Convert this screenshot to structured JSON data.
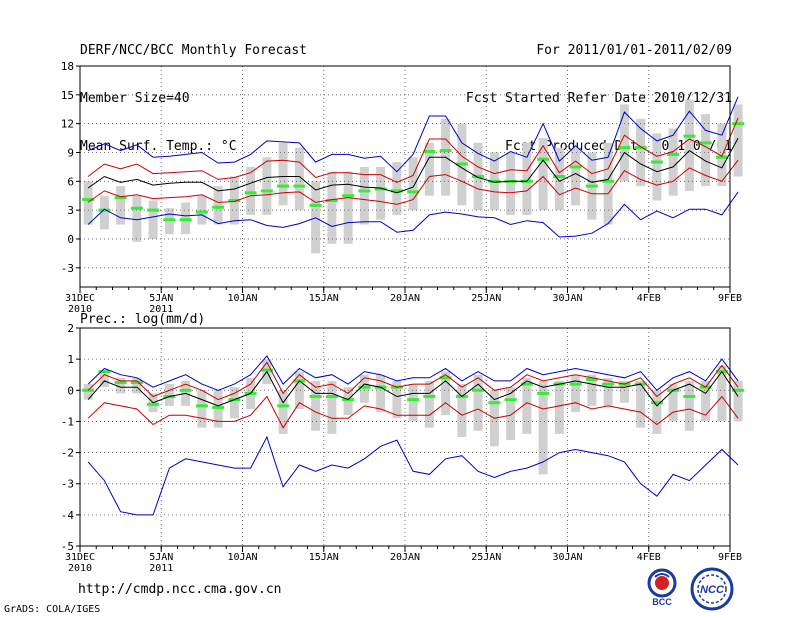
{
  "header": {
    "title": "DERF/NCC/BCC Monthly Forecast",
    "member_size": "Member Size=40",
    "variable": "Mean Surf. Temp.: °C",
    "period": "For 2011/01/01-2011/02/09",
    "started": "Fcst Started Refer Date 2010/12/31",
    "produced": "Fcst Produced Date 2011/01/01"
  },
  "footer": {
    "url": "http://cmdp.ncc.cma.gov.cn",
    "credit": "GrADS: COLA/IGES",
    "logo_left_text": "BCC",
    "logo_right_text": "NCC"
  },
  "colors": {
    "envelope": "#0000cc",
    "spread": "#cc0000",
    "mean": "#000000",
    "box": "#d0d0d0",
    "median": "#33ee33"
  },
  "chart_data": [
    {
      "type": "box-line",
      "title": "Mean Surf. Temp.: °C",
      "ylabel": "Mean Surf. Temp.: °C",
      "ylim": [
        -5,
        18
      ],
      "yticks": [
        -3,
        0,
        3,
        6,
        9,
        12,
        15,
        18
      ],
      "x_start_day": 0,
      "x_end_day": 40,
      "xticks": [
        {
          "day": 0,
          "label": "31DEC",
          "sub": "2010"
        },
        {
          "day": 5,
          "label": "5JAN",
          "sub": "2011"
        },
        {
          "day": 10,
          "label": "10JAN",
          "sub": ""
        },
        {
          "day": 15,
          "label": "15JAN",
          "sub": ""
        },
        {
          "day": 20,
          "label": "20JAN",
          "sub": ""
        },
        {
          "day": 25,
          "label": "25JAN",
          "sub": ""
        },
        {
          "day": 30,
          "label": "30JAN",
          "sub": ""
        },
        {
          "day": 35,
          "label": "4FEB",
          "sub": ""
        },
        {
          "day": 40,
          "label": "9FEB",
          "sub": ""
        }
      ],
      "series": [
        {
          "name": "max",
          "values": [
            9.2,
            9.9,
            9.2,
            9.8,
            8.5,
            8.6,
            8.8,
            9.0,
            7.9,
            8.0,
            8.8,
            10.2,
            10.1,
            10.0,
            8.0,
            8.8,
            8.8,
            8.4,
            8.6,
            7.0,
            8.8,
            12.8,
            12.8,
            10.0,
            8.9,
            8.1,
            9.1,
            8.5,
            12.0,
            8.1,
            9.7,
            8.2,
            8.5,
            13.2,
            11.5,
            10.2,
            10.8,
            13.3,
            11.3,
            10.8,
            14.8
          ]
        },
        {
          "name": "upper",
          "values": [
            6.5,
            7.8,
            7.3,
            7.8,
            6.8,
            6.9,
            7.0,
            7.1,
            6.2,
            6.4,
            6.9,
            8.1,
            8.2,
            8.0,
            6.4,
            6.9,
            6.9,
            6.7,
            6.7,
            5.9,
            6.6,
            10.4,
            10.4,
            8.6,
            7.5,
            6.8,
            7.2,
            7.1,
            9.7,
            6.9,
            8.1,
            6.8,
            7.3,
            10.8,
            9.6,
            8.6,
            9.1,
            10.4,
            9.6,
            8.6,
            12.6
          ]
        },
        {
          "name": "mean",
          "values": [
            5.3,
            6.5,
            5.9,
            6.2,
            5.6,
            5.8,
            5.9,
            5.9,
            5.0,
            5.2,
            5.8,
            6.4,
            6.5,
            6.5,
            5.1,
            5.6,
            5.7,
            5.4,
            5.3,
            4.8,
            5.4,
            8.5,
            8.5,
            7.4,
            6.4,
            5.9,
            6.0,
            6.0,
            8.2,
            6.0,
            6.8,
            5.9,
            6.2,
            9.0,
            7.8,
            7.0,
            7.5,
            9.2,
            8.1,
            7.4,
            10.5
          ]
        },
        {
          "name": "lower",
          "values": [
            3.8,
            5.0,
            4.4,
            4.6,
            4.2,
            4.3,
            4.4,
            4.6,
            3.8,
            3.9,
            4.5,
            4.6,
            4.8,
            4.9,
            3.8,
            4.1,
            4.3,
            4.1,
            3.9,
            3.6,
            4.1,
            6.5,
            6.7,
            6.0,
            5.2,
            4.9,
            4.8,
            5.0,
            6.5,
            4.6,
            5.3,
            4.7,
            4.7,
            7.1,
            6.2,
            5.6,
            6.0,
            7.4,
            6.6,
            6.0,
            8.2
          ]
        },
        {
          "name": "min",
          "values": [
            1.5,
            3.1,
            2.2,
            2.0,
            2.3,
            2.6,
            2.4,
            2.5,
            1.6,
            1.9,
            2.0,
            1.4,
            1.2,
            1.6,
            2.2,
            1.3,
            1.7,
            1.8,
            1.8,
            0.7,
            0.9,
            2.5,
            2.8,
            2.6,
            2.3,
            2.2,
            1.5,
            1.9,
            1.7,
            0.2,
            0.3,
            0.6,
            1.6,
            3.6,
            2.0,
            2.9,
            2.2,
            3.1,
            3.1,
            2.5,
            4.9
          ]
        }
      ],
      "boxes": [
        {
          "low": 1.5,
          "high": 6.0,
          "median": 4.1
        },
        {
          "low": 1.0,
          "high": 4.5,
          "median": 3.0
        },
        {
          "low": 1.5,
          "high": 5.5,
          "median": 4.3
        },
        {
          "low": -0.3,
          "high": 4.5,
          "median": 3.2
        },
        {
          "low": 0.0,
          "high": 4.0,
          "median": 3.0
        },
        {
          "low": 0.5,
          "high": 3.2,
          "median": 2.0
        },
        {
          "low": 0.5,
          "high": 3.8,
          "median": 2.0
        },
        {
          "low": 1.5,
          "high": 4.5,
          "median": 2.8
        },
        {
          "low": 1.5,
          "high": 5.5,
          "median": 3.3
        },
        {
          "low": 1.5,
          "high": 6.5,
          "median": 4.0
        },
        {
          "low": 2.5,
          "high": 7.5,
          "median": 4.8
        },
        {
          "low": 2.5,
          "high": 8.5,
          "median": 5.0
        },
        {
          "low": 3.5,
          "high": 10.0,
          "median": 5.5
        },
        {
          "low": 3.0,
          "high": 9.5,
          "median": 5.5
        },
        {
          "low": -1.5,
          "high": 6.0,
          "median": 3.5
        },
        {
          "low": -0.5,
          "high": 7.0,
          "median": 4.0
        },
        {
          "low": -0.5,
          "high": 7.0,
          "median": 4.5
        },
        {
          "low": 1.5,
          "high": 7.5,
          "median": 5.0
        },
        {
          "low": 2.0,
          "high": 7.5,
          "median": 5.2
        },
        {
          "low": 2.5,
          "high": 8.0,
          "median": 5.0
        },
        {
          "low": 3.0,
          "high": 8.5,
          "median": 4.9
        },
        {
          "low": 4.5,
          "high": 10.0,
          "median": 9.1
        },
        {
          "low": 4.5,
          "high": 12.5,
          "median": 9.2
        },
        {
          "low": 3.5,
          "high": 12.0,
          "median": 7.8
        },
        {
          "low": 3.0,
          "high": 10.0,
          "median": 6.5
        },
        {
          "low": 3.0,
          "high": 9.0,
          "median": 6.0
        },
        {
          "low": 2.5,
          "high": 9.0,
          "median": 6.0
        },
        {
          "low": 2.5,
          "high": 10.0,
          "median": 6.0
        },
        {
          "low": 3.0,
          "high": 10.5,
          "median": 8.3
        },
        {
          "low": 3.0,
          "high": 9.5,
          "median": 6.5
        },
        {
          "low": 3.5,
          "high": 9.5,
          "median": 7.5
        },
        {
          "low": 2.0,
          "high": 9.0,
          "median": 5.5
        },
        {
          "low": 1.5,
          "high": 10.0,
          "median": 6.0
        },
        {
          "low": 6.0,
          "high": 14.0,
          "median": 9.5
        },
        {
          "low": 5.5,
          "high": 12.5,
          "median": 9.5
        },
        {
          "low": 4.0,
          "high": 11.0,
          "median": 8.0
        },
        {
          "low": 4.5,
          "high": 11.5,
          "median": 8.8
        },
        {
          "low": 5.0,
          "high": 14.5,
          "median": 10.7
        },
        {
          "low": 5.5,
          "high": 13.0,
          "median": 10.0
        },
        {
          "low": 5.5,
          "high": 12.0,
          "median": 8.5
        },
        {
          "low": 6.5,
          "high": 14.0,
          "median": 12.0
        }
      ]
    },
    {
      "type": "box-line",
      "title": "Prec.: log(mm/d)",
      "ylabel": "Prec.: log(mm/d)",
      "ylim": [
        -5,
        2
      ],
      "yticks": [
        -5,
        -4,
        -3,
        -2,
        -1,
        0,
        1,
        2
      ],
      "x_start_day": 0,
      "x_end_day": 40,
      "xticks": [
        {
          "day": 0,
          "label": "31DEC",
          "sub": "2010"
        },
        {
          "day": 5,
          "label": "5JAN",
          "sub": "2011"
        },
        {
          "day": 10,
          "label": "10JAN",
          "sub": ""
        },
        {
          "day": 15,
          "label": "15JAN",
          "sub": ""
        },
        {
          "day": 20,
          "label": "20JAN",
          "sub": ""
        },
        {
          "day": 25,
          "label": "25JAN",
          "sub": ""
        },
        {
          "day": 30,
          "label": "30JAN",
          "sub": ""
        },
        {
          "day": 35,
          "label": "4FEB",
          "sub": ""
        },
        {
          "day": 40,
          "label": "9FEB",
          "sub": ""
        }
      ],
      "series": [
        {
          "name": "max",
          "values": [
            0.2,
            0.7,
            0.5,
            0.4,
            0.1,
            0.3,
            0.5,
            0.2,
            0.0,
            0.2,
            0.5,
            1.1,
            0.2,
            0.7,
            0.4,
            0.5,
            0.2,
            0.6,
            0.5,
            0.3,
            0.4,
            0.4,
            0.7,
            0.3,
            0.6,
            0.3,
            0.3,
            0.7,
            0.5,
            0.6,
            0.7,
            0.6,
            0.5,
            0.4,
            0.6,
            0.0,
            0.4,
            0.6,
            0.3,
            1.0,
            0.3
          ]
        },
        {
          "name": "upper",
          "values": [
            0.0,
            0.5,
            0.3,
            0.3,
            -0.2,
            0.0,
            0.2,
            0.0,
            -0.3,
            -0.1,
            0.2,
            0.9,
            -0.1,
            0.5,
            0.1,
            0.2,
            -0.1,
            0.4,
            0.3,
            0.1,
            0.2,
            0.2,
            0.5,
            0.1,
            0.4,
            0.0,
            0.1,
            0.5,
            0.3,
            0.4,
            0.5,
            0.4,
            0.3,
            0.2,
            0.4,
            -0.2,
            0.2,
            0.4,
            0.1,
            0.8,
            0.1
          ]
        },
        {
          "name": "mean",
          "values": [
            -0.3,
            0.3,
            0.1,
            0.1,
            -0.4,
            -0.2,
            -0.1,
            -0.3,
            -0.5,
            -0.3,
            -0.1,
            0.6,
            -0.4,
            0.3,
            -0.1,
            -0.1,
            -0.3,
            0.2,
            0.1,
            -0.2,
            -0.1,
            -0.1,
            0.3,
            -0.2,
            0.2,
            -0.3,
            -0.1,
            0.3,
            0.1,
            0.2,
            0.3,
            0.2,
            0.1,
            0.1,
            0.2,
            -0.5,
            0.0,
            0.2,
            -0.1,
            0.6,
            -0.2
          ]
        },
        {
          "name": "lower",
          "values": [
            -0.9,
            -0.4,
            -0.5,
            -0.6,
            -1.1,
            -0.8,
            -0.8,
            -0.9,
            -1.0,
            -1.0,
            -0.8,
            -0.2,
            -1.2,
            -0.4,
            -0.7,
            -0.9,
            -0.9,
            -0.5,
            -0.6,
            -0.8,
            -0.8,
            -0.8,
            -0.4,
            -0.8,
            -0.6,
            -0.9,
            -0.8,
            -0.4,
            -0.6,
            -0.5,
            -0.4,
            -0.6,
            -0.5,
            -0.6,
            -0.7,
            -1.1,
            -0.7,
            -0.6,
            -0.8,
            -0.2,
            -0.9
          ]
        },
        {
          "name": "min",
          "values": [
            -2.3,
            -2.9,
            -3.9,
            -4.0,
            -4.0,
            -2.5,
            -2.2,
            -2.3,
            -2.4,
            -2.5,
            -2.5,
            -1.5,
            -3.1,
            -2.4,
            -2.6,
            -2.4,
            -2.5,
            -2.2,
            -1.8,
            -1.6,
            -2.6,
            -2.7,
            -2.2,
            -2.1,
            -2.6,
            -2.8,
            -2.6,
            -2.5,
            -2.3,
            -2.0,
            -1.9,
            -2.0,
            -2.1,
            -2.3,
            -3.0,
            -3.4,
            -2.7,
            -2.9,
            -2.4,
            -1.9,
            -2.4
          ]
        }
      ],
      "boxes": [
        {
          "low": -0.3,
          "high": 0.2,
          "median": 0.0
        },
        {
          "low": 0.1,
          "high": 0.6,
          "median": 0.6
        },
        {
          "low": -0.1,
          "high": 0.4,
          "median": 0.25
        },
        {
          "low": -0.1,
          "high": 0.4,
          "median": 0.25
        },
        {
          "low": -0.7,
          "high": -0.1,
          "median": -0.45
        },
        {
          "low": -0.5,
          "high": 0.2,
          "median": -0.2
        },
        {
          "low": -0.5,
          "high": 0.3,
          "median": 0.0
        },
        {
          "low": -1.2,
          "high": 0.0,
          "median": -0.5
        },
        {
          "low": -1.2,
          "high": 0.0,
          "median": -0.55
        },
        {
          "low": -0.9,
          "high": 0.1,
          "median": -0.3
        },
        {
          "low": -0.6,
          "high": 0.4,
          "median": -0.1
        },
        {
          "low": 0.2,
          "high": 1.0,
          "median": 0.65
        },
        {
          "low": -1.4,
          "high": 0.0,
          "median": -0.5
        },
        {
          "low": -0.6,
          "high": 0.6,
          "median": 0.3
        },
        {
          "low": -1.3,
          "high": 0.3,
          "median": -0.2
        },
        {
          "low": -1.4,
          "high": 0.3,
          "median": -0.2
        },
        {
          "low": -0.8,
          "high": 0.1,
          "median": -0.3
        },
        {
          "low": -0.4,
          "high": 0.5,
          "median": 0.1
        },
        {
          "low": -0.7,
          "high": 0.5,
          "median": 0.1
        },
        {
          "low": -0.9,
          "high": 0.3,
          "median": 0.1
        },
        {
          "low": -1.0,
          "high": 0.2,
          "median": -0.3
        },
        {
          "low": -1.2,
          "high": 0.3,
          "median": -0.2
        },
        {
          "low": -0.8,
          "high": 0.6,
          "median": 0.4
        },
        {
          "low": -1.5,
          "high": 0.2,
          "median": -0.2
        },
        {
          "low": -1.3,
          "high": 0.5,
          "median": 0.0
        },
        {
          "low": -1.8,
          "high": 0.0,
          "median": -0.4
        },
        {
          "low": -1.6,
          "high": 0.1,
          "median": -0.3
        },
        {
          "low": -1.4,
          "high": 0.4,
          "median": 0.2
        },
        {
          "low": -2.7,
          "high": 0.3,
          "median": -0.1
        },
        {
          "low": -1.4,
          "high": 0.3,
          "median": 0.2
        },
        {
          "low": -0.7,
          "high": 0.5,
          "median": 0.2
        },
        {
          "low": -0.5,
          "high": 0.5,
          "median": 0.35
        },
        {
          "low": -0.5,
          "high": 0.4,
          "median": 0.2
        },
        {
          "low": -0.4,
          "high": 0.3,
          "median": 0.2
        },
        {
          "low": -1.2,
          "high": 0.3,
          "median": 0.2
        },
        {
          "low": -1.4,
          "high": 0.0,
          "median": -0.4
        },
        {
          "low": -1.0,
          "high": 0.2,
          "median": 0.0
        },
        {
          "low": -1.3,
          "high": 0.3,
          "median": -0.2
        },
        {
          "low": -1.0,
          "high": 0.3,
          "median": 0.1
        },
        {
          "low": -1.0,
          "high": 0.8,
          "median": 0.6
        },
        {
          "low": -1.0,
          "high": 0.3,
          "median": 0.0
        }
      ]
    }
  ]
}
